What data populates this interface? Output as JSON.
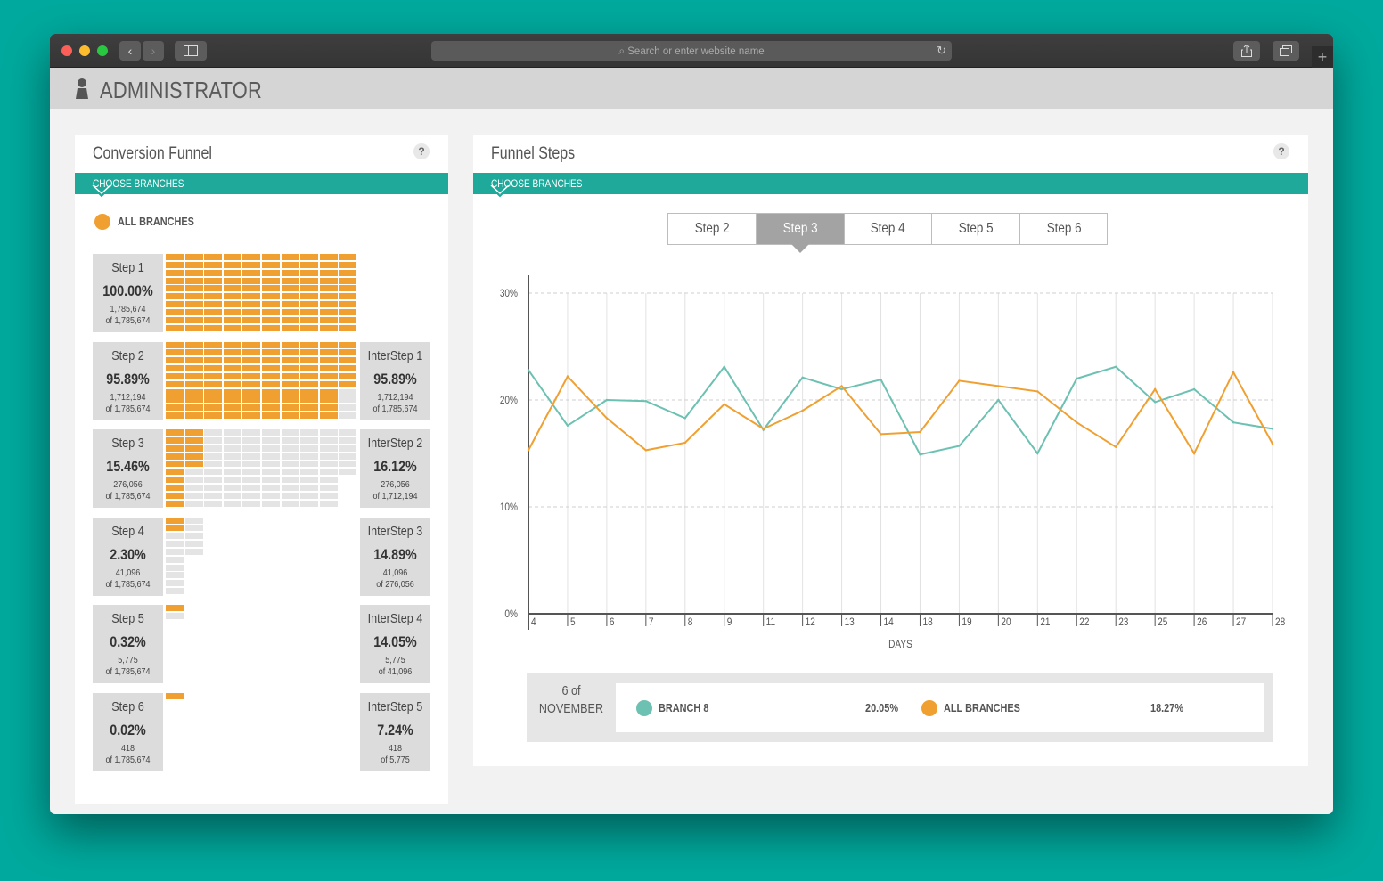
{
  "browser": {
    "address_placeholder": "Search or enter website name",
    "back": "‹",
    "forward": "›"
  },
  "app": {
    "title": "ADMINISTRATOR"
  },
  "funnel": {
    "title": "Conversion Funnel",
    "help": "?",
    "choose": "CHOOSE BRANCHES",
    "filter": "ALL BRANCHES",
    "steps": [
      {
        "name": "Step 1",
        "pct": "100.00%",
        "count": "1,785,674",
        "of": "of 1,785,674",
        "fill": 1.0
      },
      {
        "name": "Step 2",
        "pct": "95.89%",
        "count": "1,712,194",
        "of": "of 1,785,674",
        "fill": 0.9589
      },
      {
        "name": "Step 3",
        "pct": "15.46%",
        "count": "276,056",
        "of": "of 1,785,674",
        "fill": 0.1546
      },
      {
        "name": "Step 4",
        "pct": "2.30%",
        "count": "41,096",
        "of": "of 1,785,674",
        "fill": 0.023
      },
      {
        "name": "Step 5",
        "pct": "0.32%",
        "count": "5,775",
        "of": "of 1,785,674",
        "fill": 0.0032
      },
      {
        "name": "Step 6",
        "pct": "0.02%",
        "count": "418",
        "of": "of 1,785,674",
        "fill": 0.0002
      }
    ],
    "intersteps": [
      {
        "name": "InterStep 1",
        "pct": "95.89%",
        "count": "1,712,194",
        "of": "of 1,785,674"
      },
      {
        "name": "InterStep 2",
        "pct": "16.12%",
        "count": "276,056",
        "of": "of 1,712,194"
      },
      {
        "name": "InterStep 3",
        "pct": "14.89%",
        "count": "41,096",
        "of": "of 276,056"
      },
      {
        "name": "InterStep 4",
        "pct": "14.05%",
        "count": "5,775",
        "of": "of 41,096"
      },
      {
        "name": "InterStep 5",
        "pct": "7.24%",
        "count": "418",
        "of": "of 5,775"
      }
    ]
  },
  "funnel_steps": {
    "title": "Funnel Steps",
    "help": "?",
    "choose": "CHOOSE BRANCHES",
    "tabs": [
      "Step 2",
      "Step 3",
      "Step 4",
      "Step 5",
      "Step 6"
    ],
    "active_tab": "Step 3",
    "legend": {
      "date_day": "6 of",
      "date_month": "NOVEMBER",
      "s1_name": "BRANCH 8",
      "s1_value": "20.05%",
      "s2_name": "ALL BRANCHES",
      "s2_value": "18.27%"
    }
  },
  "colors": {
    "teal": "#1ea99a",
    "orange": "#f0a030",
    "green_line": "#6cc1b2",
    "grey": "#a3a3a3"
  },
  "chart_data": {
    "type": "line",
    "xlabel": "DAYS",
    "ylabel": "",
    "x": [
      "4",
      "5",
      "6",
      "7",
      "8",
      "9",
      "11",
      "12",
      "13",
      "14",
      "18",
      "19",
      "20",
      "21",
      "22",
      "23",
      "25",
      "26",
      "27",
      "28"
    ],
    "yticks": [
      "0%",
      "10%",
      "20%",
      "30%"
    ],
    "ylim": [
      0,
      30
    ],
    "series": [
      {
        "name": "BRANCH 8",
        "color": "#6cc1b2",
        "values": [
          22.8,
          17.6,
          20.0,
          19.9,
          18.3,
          23.1,
          17.2,
          22.1,
          21.0,
          21.9,
          14.9,
          15.7,
          20.0,
          15.0,
          22.0,
          23.1,
          19.8,
          21.0,
          17.9,
          17.3
        ]
      },
      {
        "name": "ALL BRANCHES",
        "color": "#f0a030",
        "values": [
          15.3,
          22.2,
          18.3,
          15.3,
          16.0,
          19.6,
          17.3,
          19.0,
          21.3,
          16.8,
          17.0,
          21.8,
          21.3,
          20.8,
          17.9,
          15.6,
          21.0,
          15.0,
          22.6,
          15.9
        ]
      }
    ]
  }
}
